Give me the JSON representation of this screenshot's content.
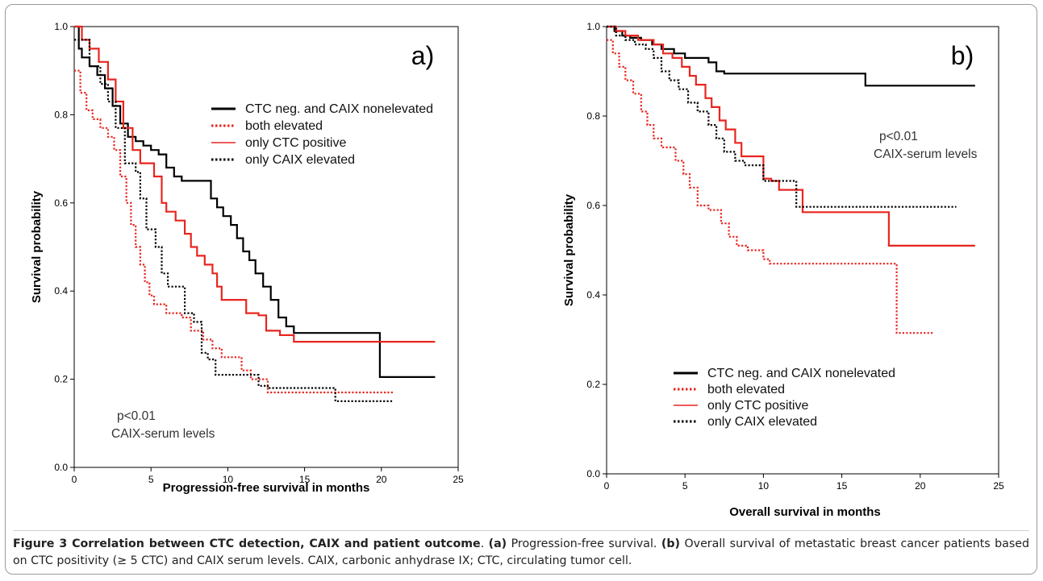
{
  "chart_data": [
    {
      "type": "line",
      "step": true,
      "panel_label": "a)",
      "xlabel": "Progression-free survival in months",
      "ylabel": "Survival probability",
      "xlim": [
        0,
        25
      ],
      "ylim": [
        0,
        1.0
      ],
      "xticks": [
        "0",
        "5",
        "10",
        "15",
        "20",
        "25"
      ],
      "yticks": [
        "0.0",
        "0.2",
        "0.4",
        "0.6",
        "0.8",
        "1.0"
      ],
      "legend_position": "top-right",
      "annotation": [
        "p<0.01",
        "CAIX-serum levels"
      ],
      "series": [
        {
          "name": "CTC neg. and CAIX nonelevated",
          "color": "#000000",
          "style": "solid",
          "points": [
            [
              0,
              1.0
            ],
            [
              0.3,
              0.95
            ],
            [
              0.5,
              0.93
            ],
            [
              1,
              0.91
            ],
            [
              1.5,
              0.89
            ],
            [
              2,
              0.86
            ],
            [
              2.5,
              0.82
            ],
            [
              3,
              0.78
            ],
            [
              3.5,
              0.75
            ],
            [
              4,
              0.74
            ],
            [
              4.5,
              0.73
            ],
            [
              5,
              0.72
            ],
            [
              5.5,
              0.71
            ],
            [
              6,
              0.68
            ],
            [
              6.5,
              0.66
            ],
            [
              7,
              0.65
            ],
            [
              8.5,
              0.65
            ],
            [
              8.9,
              0.61
            ],
            [
              9.3,
              0.59
            ],
            [
              9.7,
              0.57
            ],
            [
              10.2,
              0.55
            ],
            [
              10.6,
              0.52
            ],
            [
              11,
              0.49
            ],
            [
              11.4,
              0.47
            ],
            [
              11.8,
              0.44
            ],
            [
              12.3,
              0.41
            ],
            [
              12.8,
              0.38
            ],
            [
              13.3,
              0.34
            ],
            [
              13.8,
              0.32
            ],
            [
              14.3,
              0.305
            ],
            [
              19.9,
              0.305
            ],
            [
              19.9,
              0.205
            ],
            [
              23.5,
              0.205
            ]
          ]
        },
        {
          "name": "both elevated",
          "color": "#e8251f",
          "style": "dotted",
          "points": [
            [
              0,
              0.9
            ],
            [
              0.4,
              0.85
            ],
            [
              0.8,
              0.81
            ],
            [
              1.2,
              0.79
            ],
            [
              1.7,
              0.77
            ],
            [
              2.2,
              0.75
            ],
            [
              2.6,
              0.72
            ],
            [
              3,
              0.66
            ],
            [
              3.4,
              0.6
            ],
            [
              3.7,
              0.55
            ],
            [
              4,
              0.5
            ],
            [
              4.3,
              0.46
            ],
            [
              4.6,
              0.42
            ],
            [
              4.9,
              0.39
            ],
            [
              5.2,
              0.37
            ],
            [
              6,
              0.35
            ],
            [
              7,
              0.34
            ],
            [
              7.6,
              0.31
            ],
            [
              8.4,
              0.29
            ],
            [
              9,
              0.27
            ],
            [
              9.6,
              0.25
            ],
            [
              10.9,
              0.25
            ],
            [
              10.9,
              0.22
            ],
            [
              11.5,
              0.2
            ],
            [
              12.6,
              0.17
            ],
            [
              20.8,
              0.17
            ]
          ]
        },
        {
          "name": "only CTC positive",
          "color": "#e8251f",
          "style": "solid",
          "points": [
            [
              0,
              1.0
            ],
            [
              0.5,
              0.97
            ],
            [
              1,
              0.95
            ],
            [
              1.6,
              0.92
            ],
            [
              2.2,
              0.88
            ],
            [
              2.7,
              0.83
            ],
            [
              3.2,
              0.77
            ],
            [
              3.8,
              0.72
            ],
            [
              4.3,
              0.69
            ],
            [
              5.2,
              0.66
            ],
            [
              5.7,
              0.6
            ],
            [
              6,
              0.58
            ],
            [
              6.6,
              0.56
            ],
            [
              7.2,
              0.53
            ],
            [
              7.6,
              0.5
            ],
            [
              8,
              0.48
            ],
            [
              8.5,
              0.46
            ],
            [
              9,
              0.44
            ],
            [
              9.3,
              0.41
            ],
            [
              9.6,
              0.38
            ],
            [
              11,
              0.38
            ],
            [
              11.2,
              0.35
            ],
            [
              12,
              0.345
            ],
            [
              12.5,
              0.31
            ],
            [
              13.4,
              0.3
            ],
            [
              14.3,
              0.285
            ],
            [
              23.5,
              0.285
            ]
          ]
        },
        {
          "name": "only CAIX elevated",
          "color": "#000000",
          "style": "dotted",
          "points": [
            [
              0,
              0.97
            ],
            [
              1,
              0.91
            ],
            [
              1.7,
              0.87
            ],
            [
              2.2,
              0.83
            ],
            [
              2.7,
              0.77
            ],
            [
              3.3,
              0.69
            ],
            [
              4,
              0.67
            ],
            [
              4.3,
              0.61
            ],
            [
              4.7,
              0.54
            ],
            [
              5.3,
              0.5
            ],
            [
              5.7,
              0.44
            ],
            [
              6.1,
              0.41
            ],
            [
              7,
              0.41
            ],
            [
              7.2,
              0.35
            ],
            [
              7.8,
              0.33
            ],
            [
              8.3,
              0.29
            ],
            [
              8.3,
              0.26
            ],
            [
              8.7,
              0.245
            ],
            [
              9.2,
              0.21
            ],
            [
              12,
              0.21
            ],
            [
              12,
              0.185
            ],
            [
              12.6,
              0.18
            ],
            [
              17,
              0.15
            ],
            [
              20.8,
              0.15
            ]
          ]
        }
      ]
    },
    {
      "type": "line",
      "step": true,
      "panel_label": "b)",
      "xlabel": "Overall survival in months",
      "ylabel": "Survival probability",
      "xlim": [
        0,
        25
      ],
      "ylim": [
        0,
        1.0
      ],
      "xticks": [
        "0",
        "5",
        "10",
        "15",
        "20",
        "25"
      ],
      "yticks": [
        "0.0",
        "0.2",
        "0.4",
        "0.6",
        "0.8",
        "1.0"
      ],
      "legend_position": "bottom-left",
      "annotation": [
        "p<0.01",
        "CAIX-serum levels"
      ],
      "series": [
        {
          "name": "CTC neg. and CAIX nonelevated",
          "color": "#000000",
          "style": "solid",
          "points": [
            [
              0,
              1.0
            ],
            [
              0.5,
              0.99
            ],
            [
              1,
              0.98
            ],
            [
              1.5,
              0.975
            ],
            [
              2.2,
              0.97
            ],
            [
              2.9,
              0.96
            ],
            [
              3.5,
              0.95
            ],
            [
              4.3,
              0.94
            ],
            [
              5,
              0.93
            ],
            [
              6.2,
              0.93
            ],
            [
              6.5,
              0.92
            ],
            [
              7,
              0.9
            ],
            [
              7.5,
              0.895
            ],
            [
              16.5,
              0.895
            ],
            [
              16.5,
              0.868
            ],
            [
              23.5,
              0.868
            ]
          ]
        },
        {
          "name": "both elevated",
          "color": "#e8251f",
          "style": "dotted",
          "points": [
            [
              0,
              0.97
            ],
            [
              0.4,
              0.94
            ],
            [
              0.8,
              0.91
            ],
            [
              1.2,
              0.88
            ],
            [
              1.7,
              0.85
            ],
            [
              2.2,
              0.81
            ],
            [
              2.6,
              0.78
            ],
            [
              3,
              0.75
            ],
            [
              3.5,
              0.73
            ],
            [
              4.4,
              0.7
            ],
            [
              4.9,
              0.67
            ],
            [
              5.3,
              0.64
            ],
            [
              5.8,
              0.6
            ],
            [
              6.5,
              0.59
            ],
            [
              7.3,
              0.56
            ],
            [
              7.8,
              0.53
            ],
            [
              8.3,
              0.51
            ],
            [
              9,
              0.5
            ],
            [
              10,
              0.48
            ],
            [
              10.4,
              0.47
            ],
            [
              18.5,
              0.47
            ],
            [
              18.5,
              0.315
            ],
            [
              20.8,
              0.315
            ]
          ]
        },
        {
          "name": "only CTC positive",
          "color": "#e8251f",
          "style": "solid",
          "points": [
            [
              0,
              1.0
            ],
            [
              0.6,
              0.99
            ],
            [
              1.2,
              0.98
            ],
            [
              2,
              0.97
            ],
            [
              3,
              0.96
            ],
            [
              3.6,
              0.94
            ],
            [
              4.2,
              0.93
            ],
            [
              4.8,
              0.91
            ],
            [
              5.3,
              0.89
            ],
            [
              5.7,
              0.87
            ],
            [
              6.3,
              0.84
            ],
            [
              6.7,
              0.82
            ],
            [
              7.2,
              0.79
            ],
            [
              7.6,
              0.77
            ],
            [
              8.2,
              0.74
            ],
            [
              8.6,
              0.71
            ],
            [
              9.5,
              0.71
            ],
            [
              10,
              0.66
            ],
            [
              10.5,
              0.655
            ],
            [
              11,
              0.635
            ],
            [
              12,
              0.635
            ],
            [
              12.5,
              0.585
            ],
            [
              18,
              0.585
            ],
            [
              18,
              0.51
            ],
            [
              23.5,
              0.51
            ]
          ]
        },
        {
          "name": "only CAIX elevated",
          "color": "#000000",
          "style": "dotted",
          "points": [
            [
              0,
              1.0
            ],
            [
              0.6,
              0.98
            ],
            [
              1.2,
              0.97
            ],
            [
              1.8,
              0.96
            ],
            [
              2.5,
              0.95
            ],
            [
              3,
              0.93
            ],
            [
              3.5,
              0.9
            ],
            [
              4,
              0.88
            ],
            [
              4.6,
              0.86
            ],
            [
              5.2,
              0.83
            ],
            [
              5.8,
              0.81
            ],
            [
              6.5,
              0.78
            ],
            [
              7,
              0.75
            ],
            [
              7.5,
              0.72
            ],
            [
              8.2,
              0.7
            ],
            [
              8.8,
              0.69
            ],
            [
              9.6,
              0.69
            ],
            [
              10,
              0.655
            ],
            [
              11.8,
              0.655
            ],
            [
              12.1,
              0.597
            ],
            [
              22.3,
              0.597
            ]
          ]
        }
      ]
    }
  ],
  "caption": {
    "title": "Figure 3 Correlation between CTC detection, CAIX and patient outcome",
    "part_a_label": "(a)",
    "part_a_text": " Progression-free survival. ",
    "part_b_label": "(b)",
    "part_b_text": " Overall survival of metastatic breast cancer patients based on CTC positivity (≥ 5 CTC) and CAIX serum levels. CAIX, carbonic anhydrase IX; CTC, circulating tumor cell."
  }
}
